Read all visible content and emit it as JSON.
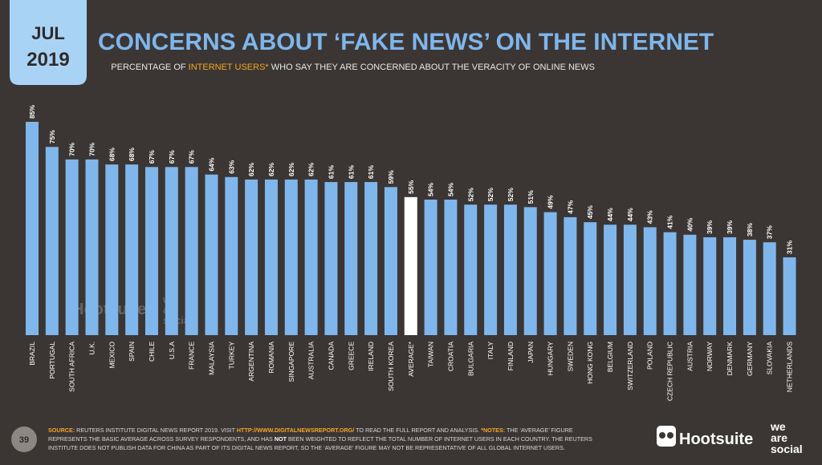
{
  "badge": {
    "month": "JUL",
    "year": "2019"
  },
  "chart_data": {
    "type": "bar",
    "title": "CONCERNS ABOUT ‘FAKE NEWS’ ON THE INTERNET",
    "subtitle": [
      "PERCENTAGE OF ",
      "INTERNET USERS*",
      " WHO SAY THEY ARE CONCERNED ABOUT THE VERACITY OF ONLINE NEWS"
    ],
    "categories": [
      "BRAZIL",
      "PORTUGAL",
      "SOUTH AFRICA",
      "U.K.",
      "MEXICO",
      "SPAIN",
      "CHILE",
      "U.S.A",
      "FRANCE",
      "MALAYSIA",
      "TURKEY",
      "ARGENTINA",
      "ROMANIA",
      "SINGAPORE",
      "AUSTRALIA",
      "CANADA",
      "GREECE",
      "IRELAND",
      "SOUTH KOREA",
      "AVERAGE*",
      "TAIWAN",
      "CROATIA",
      "BULGARIA",
      "ITALY",
      "FINLAND",
      "JAPAN",
      "HUNGARY",
      "SWEDEN",
      "HONG KONG",
      "BELGIUM",
      "SWITZERLAND",
      "POLAND",
      "CZECH REPUBLIC",
      "AUSTRIA",
      "NORWAY",
      "DENMARK",
      "GERMANY",
      "SLOVAKIA",
      "NETHERLANDS"
    ],
    "values": [
      85,
      75,
      70,
      70,
      68,
      68,
      67,
      67,
      67,
      64,
      63,
      62,
      62,
      62,
      62,
      61,
      61,
      61,
      59,
      55,
      54,
      54,
      52,
      52,
      52,
      51,
      49,
      47,
      45,
      44,
      44,
      43,
      41,
      40,
      39,
      39,
      38,
      37,
      31
    ],
    "value_labels": [
      "85%",
      "75%",
      "70%",
      "70%",
      "68%",
      "68%",
      "67%",
      "67%",
      "67%",
      "64%",
      "63%",
      "62%",
      "62%",
      "62%",
      "62%",
      "61%",
      "61%",
      "61%",
      "59%",
      "55%",
      "54%",
      "54%",
      "52%",
      "52%",
      "52%",
      "51%",
      "49%",
      "47%",
      "45%",
      "44%",
      "44%",
      "43%",
      "41%",
      "40%",
      "39%",
      "39%",
      "38%",
      "37%",
      "31%"
    ],
    "colors": [
      "#7fb6ec",
      "#7fb6ec",
      "#7fb6ec",
      "#7fb6ec",
      "#7fb6ec",
      "#7fb6ec",
      "#7fb6ec",
      "#7fb6ec",
      "#7fb6ec",
      "#7fb6ec",
      "#7fb6ec",
      "#7fb6ec",
      "#7fb6ec",
      "#7fb6ec",
      "#7fb6ec",
      "#7fb6ec",
      "#7fb6ec",
      "#7fb6ec",
      "#7fb6ec",
      "#ffffff",
      "#7fb6ec",
      "#7fb6ec",
      "#7fb6ec",
      "#7fb6ec",
      "#7fb6ec",
      "#7fb6ec",
      "#7fb6ec",
      "#7fb6ec",
      "#7fb6ec",
      "#7fb6ec",
      "#7fb6ec",
      "#7fb6ec",
      "#7fb6ec",
      "#7fb6ec",
      "#7fb6ec",
      "#7fb6ec",
      "#7fb6ec",
      "#7fb6ec",
      "#7fb6ec"
    ]
  },
  "footer": {
    "page": "39",
    "lines": [
      [
        "SOURCE:",
        " REUTERS INSTITUTE DIGITAL NEWS REPORT 2019. VISIT ",
        "HTTP://WWW.DIGITALNEWSREPORT.ORG/",
        " TO READ THE FULL REPORT AND ANALYSIS. ",
        "*NOTES:",
        " THE ‘AVERAGE’ FIGURE"
      ],
      [
        "REPRESENTS THE BASIC AVERAGE ACROSS SURVEY RESPONDENTS, AND HAS ",
        "NOT",
        " BEEN WEIGHTED TO REFLECT THE TOTAL NUMBER OF INTERNET USERS IN EACH COUNTRY. THE REUTERS"
      ],
      [
        "INSTITUTE DOES NOT PUBLISH DATA FOR CHINA AS PART OF ITS DIGITAL NEWS REPORT, SO THE ‘AVERAGE’ FIGURE MAY NOT BE REPRESENTATIVE OF ALL GLOBAL INTERNET USERS."
      ]
    ]
  },
  "logos": {
    "hootsuite": "Hootsuite",
    "we": "we",
    "are": "are",
    "social": "social"
  }
}
